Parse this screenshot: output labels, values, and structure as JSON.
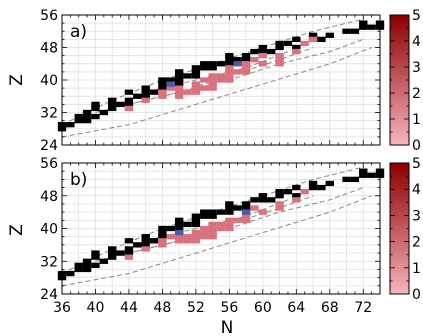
{
  "figure": {
    "panel_labels": [
      "a)",
      "b)"
    ],
    "xlabel": "N",
    "ylabel": "Z"
  },
  "chart_data": [
    {
      "type": "scatter",
      "panel": "a)",
      "xlabel": "",
      "ylabel": "Z",
      "xlim": [
        36,
        74
      ],
      "ylim": [
        24,
        56
      ],
      "xticks": [
        36,
        40,
        44,
        48,
        52,
        56,
        60,
        64,
        68,
        72
      ],
      "yticks": [
        24,
        32,
        40,
        48,
        56
      ],
      "grid": true,
      "colorbar": {
        "range": [
          0,
          5
        ],
        "ticks": [
          0,
          1,
          2,
          3,
          4,
          5
        ],
        "colors": [
          "#f7b3bc",
          "#8b0000"
        ]
      },
      "colors": {
        "known": "#000000",
        "predicted": "#d9727e",
        "boundary": "#888888",
        "highlight": "#4a5ab0"
      },
      "series": [
        {
          "name": "",
          "kind": "known",
          "points": [
            [
              36,
              28
            ],
            [
              36,
              29
            ],
            [
              37,
              29
            ],
            [
              38,
              30
            ],
            [
              38,
              31
            ],
            [
              39,
              30
            ],
            [
              39,
              31
            ],
            [
              39,
              32
            ],
            [
              40,
              31
            ],
            [
              40,
              33
            ],
            [
              40,
              34
            ],
            [
              41,
              32
            ],
            [
              42,
              33
            ],
            [
              42,
              34
            ],
            [
              42,
              35
            ],
            [
              43,
              34
            ],
            [
              44,
              34
            ],
            [
              44,
              35
            ],
            [
              44,
              37
            ],
            [
              45,
              36
            ],
            [
              46,
              36
            ],
            [
              46,
              37
            ],
            [
              46,
              38
            ],
            [
              47,
              37
            ],
            [
              48,
              38
            ],
            [
              48,
              39
            ],
            [
              48,
              40
            ],
            [
              49,
              40
            ],
            [
              50,
              39
            ],
            [
              50,
              40
            ],
            [
              50,
              41
            ],
            [
              50,
              42
            ],
            [
              51,
              41
            ],
            [
              52,
              41
            ],
            [
              52,
              42
            ],
            [
              52,
              43
            ],
            [
              53,
              43
            ],
            [
              53,
              44
            ],
            [
              54,
              43
            ],
            [
              54,
              44
            ],
            [
              55,
              44
            ],
            [
              56,
              44
            ],
            [
              56,
              45
            ],
            [
              56,
              46
            ],
            [
              57,
              45
            ],
            [
              58,
              45
            ],
            [
              58,
              46
            ],
            [
              59,
              47
            ],
            [
              60,
              47
            ],
            [
              60,
              48
            ],
            [
              61,
              47
            ],
            [
              62,
              48
            ],
            [
              62,
              49
            ],
            [
              63,
              49
            ],
            [
              64,
              48
            ],
            [
              64,
              50
            ],
            [
              66,
              50
            ],
            [
              66,
              51
            ],
            [
              67,
              50
            ],
            [
              68,
              51
            ],
            [
              70,
              52
            ],
            [
              71,
              52
            ],
            [
              72,
              53
            ],
            [
              72,
              54
            ],
            [
              73,
              53
            ],
            [
              74,
              53
            ],
            [
              74,
              54
            ]
          ]
        },
        {
          "name": "",
          "kind": "predicted",
          "points": [
            [
              44,
              33
            ],
            [
              46,
              35
            ],
            [
              48,
              36
            ],
            [
              48,
              37
            ],
            [
              49,
              38
            ],
            [
              50,
              36
            ],
            [
              50,
              37
            ],
            [
              50,
              38
            ],
            [
              51,
              37
            ],
            [
              52,
              37
            ],
            [
              52,
              38
            ],
            [
              52,
              39
            ],
            [
              53,
              38
            ],
            [
              53,
              40
            ],
            [
              54,
              38
            ],
            [
              54,
              39
            ],
            [
              54,
              40
            ],
            [
              54,
              41
            ],
            [
              55,
              40
            ],
            [
              55,
              41
            ],
            [
              56,
              40
            ],
            [
              56,
              41
            ],
            [
              56,
              42
            ],
            [
              56,
              43
            ],
            [
              57,
              42
            ],
            [
              58,
              42
            ],
            [
              58,
              43
            ],
            [
              58,
              44
            ],
            [
              59,
              45
            ],
            [
              60,
              44
            ],
            [
              60,
              46
            ],
            [
              62,
              44
            ],
            [
              62,
              45
            ],
            [
              62,
              46
            ],
            [
              64,
              47
            ],
            [
              65,
              49
            ],
            [
              66,
              50
            ]
          ]
        },
        {
          "name": "",
          "kind": "highlight",
          "points": [
            [
              49,
              39
            ],
            [
              57,
              44
            ]
          ]
        }
      ]
    },
    {
      "type": "scatter",
      "panel": "b)",
      "xlabel": "N",
      "ylabel": "Z",
      "xlim": [
        36,
        74
      ],
      "ylim": [
        24,
        56
      ],
      "xticks": [
        36,
        40,
        44,
        48,
        52,
        56,
        60,
        64,
        68,
        72
      ],
      "yticks": [
        24,
        32,
        40,
        48,
        56
      ],
      "grid": true,
      "colorbar": {
        "range": [
          0,
          5
        ],
        "ticks": [
          0,
          1,
          2,
          3,
          4,
          5
        ],
        "colors": [
          "#f7b3bc",
          "#8b0000"
        ]
      },
      "colors": {
        "known": "#000000",
        "predicted": "#d9727e",
        "boundary": "#888888",
        "highlight": "#4a5ab0"
      },
      "series": [
        {
          "name": "",
          "kind": "known",
          "points": [
            [
              36,
              28
            ],
            [
              36,
              29
            ],
            [
              37,
              29
            ],
            [
              38,
              30
            ],
            [
              38,
              31
            ],
            [
              39,
              30
            ],
            [
              39,
              31
            ],
            [
              39,
              32
            ],
            [
              40,
              31
            ],
            [
              40,
              33
            ],
            [
              40,
              34
            ],
            [
              41,
              32
            ],
            [
              42,
              33
            ],
            [
              42,
              34
            ],
            [
              42,
              35
            ],
            [
              43,
              34
            ],
            [
              44,
              34
            ],
            [
              44,
              35
            ],
            [
              44,
              37
            ],
            [
              45,
              36
            ],
            [
              46,
              36
            ],
            [
              46,
              37
            ],
            [
              46,
              38
            ],
            [
              47,
              37
            ],
            [
              48,
              38
            ],
            [
              48,
              39
            ],
            [
              48,
              40
            ],
            [
              49,
              40
            ],
            [
              50,
              39
            ],
            [
              50,
              40
            ],
            [
              50,
              41
            ],
            [
              50,
              42
            ],
            [
              51,
              41
            ],
            [
              52,
              41
            ],
            [
              52,
              42
            ],
            [
              52,
              43
            ],
            [
              53,
              43
            ],
            [
              53,
              44
            ],
            [
              54,
              43
            ],
            [
              54,
              44
            ],
            [
              55,
              44
            ],
            [
              56,
              44
            ],
            [
              56,
              45
            ],
            [
              56,
              46
            ],
            [
              57,
              45
            ],
            [
              58,
              45
            ],
            [
              58,
              46
            ],
            [
              59,
              47
            ],
            [
              60,
              47
            ],
            [
              60,
              48
            ],
            [
              61,
              47
            ],
            [
              62,
              48
            ],
            [
              62,
              49
            ],
            [
              63,
              49
            ],
            [
              64,
              48
            ],
            [
              64,
              50
            ],
            [
              66,
              50
            ],
            [
              66,
              51
            ],
            [
              67,
              50
            ],
            [
              68,
              51
            ],
            [
              70,
              52
            ],
            [
              71,
              52
            ],
            [
              72,
              53
            ],
            [
              72,
              54
            ],
            [
              73,
              53
            ],
            [
              74,
              53
            ],
            [
              74,
              54
            ]
          ]
        },
        {
          "name": "",
          "kind": "predicted",
          "points": [
            [
              44,
              33
            ],
            [
              46,
              35
            ],
            [
              48,
              36
            ],
            [
              48,
              37
            ],
            [
              49,
              38
            ],
            [
              50,
              37
            ],
            [
              50,
              38
            ],
            [
              51,
              37
            ],
            [
              51,
              38
            ],
            [
              52,
              37
            ],
            [
              52,
              38
            ],
            [
              52,
              39
            ],
            [
              53,
              38
            ],
            [
              53,
              39
            ],
            [
              53,
              40
            ],
            [
              54,
              38
            ],
            [
              54,
              39
            ],
            [
              54,
              40
            ],
            [
              54,
              41
            ],
            [
              55,
              40
            ],
            [
              55,
              41
            ],
            [
              56,
              40
            ],
            [
              56,
              41
            ],
            [
              56,
              42
            ],
            [
              57,
              42
            ],
            [
              58,
              42
            ],
            [
              58,
              43
            ],
            [
              58,
              44
            ],
            [
              59,
              45
            ],
            [
              60,
              44
            ],
            [
              62,
              45
            ],
            [
              62,
              46
            ],
            [
              64,
              47
            ],
            [
              65,
              49
            ]
          ]
        },
        {
          "name": "",
          "kind": "highlight",
          "points": [
            [
              50,
              39
            ],
            [
              58,
              44
            ]
          ]
        }
      ]
    }
  ]
}
